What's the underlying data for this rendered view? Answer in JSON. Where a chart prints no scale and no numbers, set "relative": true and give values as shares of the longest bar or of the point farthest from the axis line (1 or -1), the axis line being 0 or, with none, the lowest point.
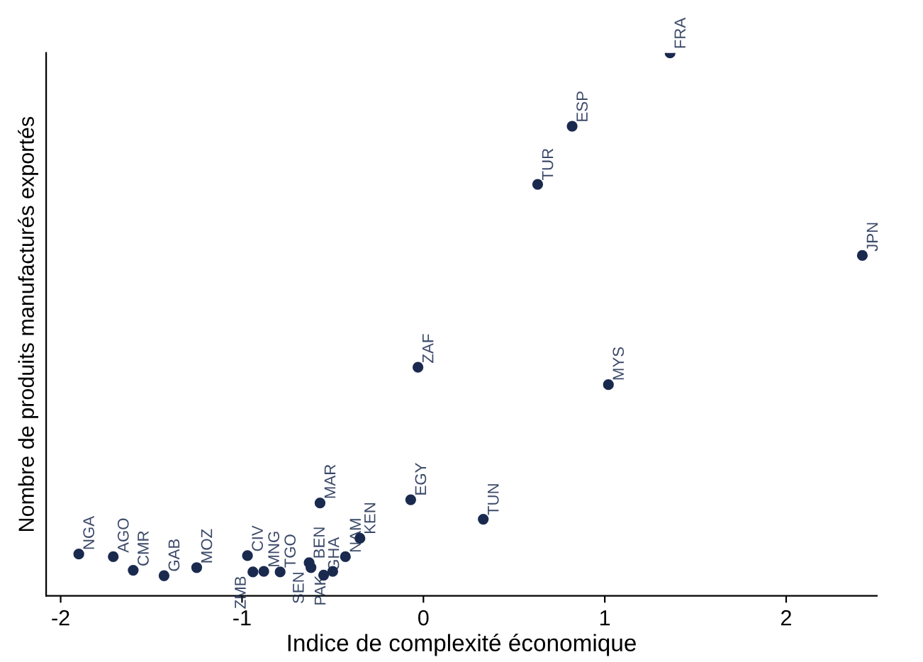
{
  "chart_data": {
    "type": "scatter",
    "relative": true,
    "xlabel": "Indice de complexité économique",
    "ylabel": "Nombre de produits manufacturés exportés",
    "x": [
      -1.9,
      -1.71,
      -1.6,
      -1.43,
      -1.25,
      -0.97,
      -0.94,
      -0.88,
      -0.79,
      -0.63,
      -0.62,
      -0.55,
      -0.5,
      -0.43,
      -0.35,
      -0.57,
      -0.07,
      -0.03,
      0.33,
      1.02,
      0.63,
      0.82,
      1.36,
      2.42
    ],
    "series": [
      {
        "color": "#1a2a4f",
        "values": [
          0.077,
          0.072,
          0.047,
          0.037,
          0.052,
          0.074,
          0.044,
          0.045,
          0.044,
          0.061,
          0.052,
          0.038,
          0.045,
          0.072,
          0.106,
          0.171,
          0.177,
          0.421,
          0.141,
          0.389,
          0.758,
          0.865,
          1.0,
          0.627
        ]
      }
    ],
    "annotations": [
      {
        "text": "NGA",
        "x": -1.9,
        "y": 0.077
      },
      {
        "text": "AGO",
        "x": -1.71,
        "y": 0.072
      },
      {
        "text": "CMR",
        "x": -1.6,
        "y": 0.047
      },
      {
        "text": "GAB",
        "x": -1.43,
        "y": 0.037
      },
      {
        "text": "MOZ",
        "x": -1.25,
        "y": 0.052
      },
      {
        "text": "CIV",
        "x": -0.97,
        "y": 0.074
      },
      {
        "text": "ZMB",
        "x": -0.94,
        "y": 0.044
      },
      {
        "text": "MNG",
        "x": -0.88,
        "y": 0.045
      },
      {
        "text": "TGO",
        "x": -0.79,
        "y": 0.044
      },
      {
        "text": "BEN",
        "x": -0.63,
        "y": 0.061
      },
      {
        "text": "SEN",
        "x": -0.62,
        "y": 0.052
      },
      {
        "text": "GHA",
        "x": -0.55,
        "y": 0.038
      },
      {
        "text": "PAK",
        "x": -0.5,
        "y": 0.045
      },
      {
        "text": "NAM",
        "x": -0.43,
        "y": 0.072
      },
      {
        "text": "KEN",
        "x": -0.35,
        "y": 0.106
      },
      {
        "text": "MAR",
        "x": -0.57,
        "y": 0.171
      },
      {
        "text": "EGY",
        "x": -0.07,
        "y": 0.177
      },
      {
        "text": "ZAF",
        "x": -0.03,
        "y": 0.421
      },
      {
        "text": "TUN",
        "x": 0.33,
        "y": 0.141
      },
      {
        "text": "MYS",
        "x": 1.02,
        "y": 0.389
      },
      {
        "text": "TUR",
        "x": 0.63,
        "y": 0.758
      },
      {
        "text": "ESP",
        "x": 0.82,
        "y": 0.865
      },
      {
        "text": "FRA",
        "x": 1.36,
        "y": 1.0
      },
      {
        "text": "JPN",
        "x": 2.42,
        "y": 0.627
      }
    ],
    "xlim": [
      -2.08,
      2.5
    ],
    "xticks": [
      -2,
      -1,
      0,
      1,
      2
    ],
    "tick_labels": "x",
    "marker": "circle",
    "grid": false
  }
}
